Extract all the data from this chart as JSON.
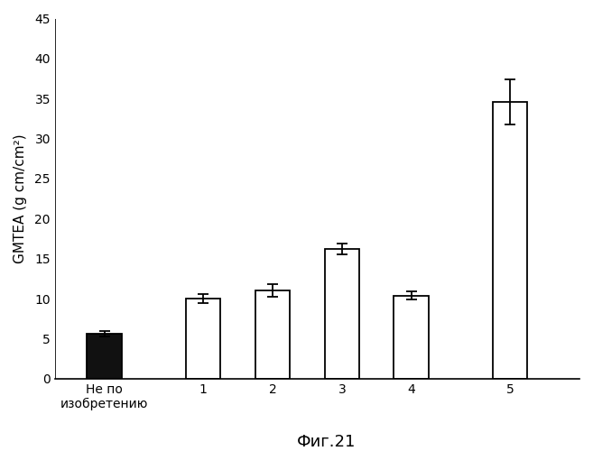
{
  "categories": [
    "Не по\nизобретению",
    "1",
    "2",
    "3",
    "4",
    "5"
  ],
  "values": [
    5.6,
    10.0,
    11.0,
    16.2,
    10.4,
    34.6
  ],
  "errors": [
    0.3,
    0.6,
    0.8,
    0.7,
    0.5,
    2.8
  ],
  "bar_colors": [
    "#111111",
    "#ffffff",
    "#ffffff",
    "#ffffff",
    "#ffffff",
    "#ffffff"
  ],
  "bar_edgecolors": [
    "#000000",
    "#000000",
    "#000000",
    "#000000",
    "#000000",
    "#000000"
  ],
  "ylabel": "GMTEA (g cm/cm²)",
  "figure_label": "Фиг.21",
  "ylim": [
    0,
    45
  ],
  "yticks": [
    0,
    5,
    10,
    15,
    20,
    25,
    30,
    35,
    40,
    45
  ],
  "bar_width": 0.35,
  "x_positions": [
    0.5,
    1.5,
    2.2,
    2.9,
    3.6,
    4.6
  ],
  "background_color": "#ffffff",
  "figure_label_fontsize": 13,
  "ylabel_fontsize": 11,
  "tick_fontsize": 10,
  "xlim": [
    0.0,
    5.3
  ]
}
